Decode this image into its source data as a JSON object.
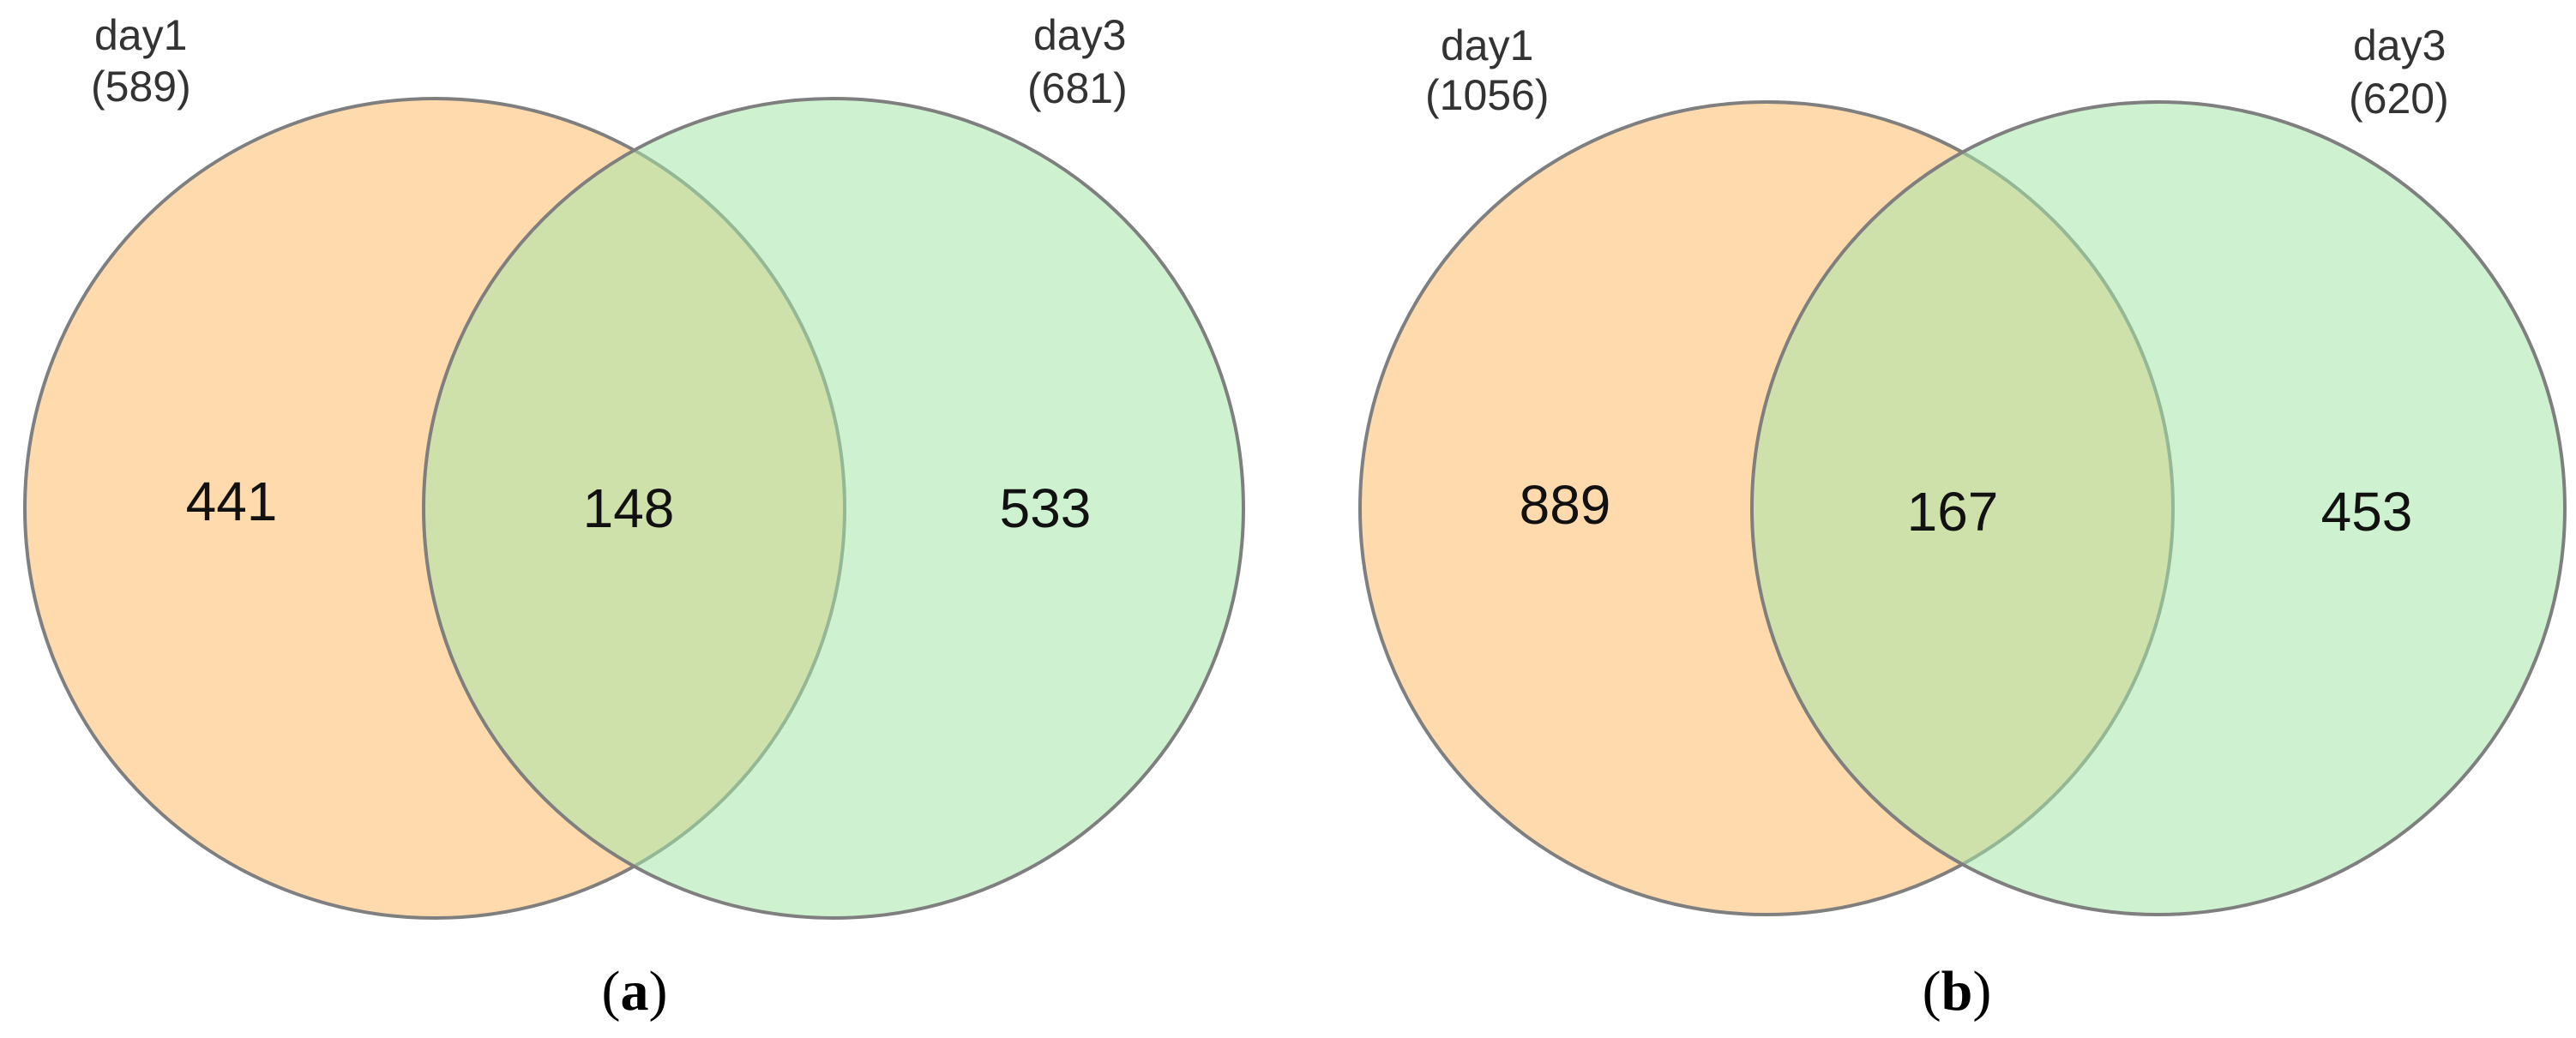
{
  "panels": [
    {
      "label_open": "(",
      "label_letter": "a",
      "label_close": ")",
      "colors": {
        "left": "#ffc47a",
        "right": "#a6e8a8",
        "stroke": "#7f7f7f"
      },
      "left_set": {
        "name": "day1",
        "total": "(589)"
      },
      "right_set": {
        "name": "day3",
        "total": "(681)"
      },
      "counts": {
        "left_only": "441",
        "intersection": "148",
        "right_only": "533"
      }
    },
    {
      "label_open": "(",
      "label_letter": "b",
      "label_close": ")",
      "colors": {
        "left": "#ffc47a",
        "right": "#a6e8a8",
        "stroke": "#7f7f7f"
      },
      "left_set": {
        "name": "day1",
        "total": "(1056)"
      },
      "right_set": {
        "name": "day3",
        "total": "(620)"
      },
      "counts": {
        "left_only": "889",
        "intersection": "167",
        "right_only": "453"
      }
    }
  ]
}
